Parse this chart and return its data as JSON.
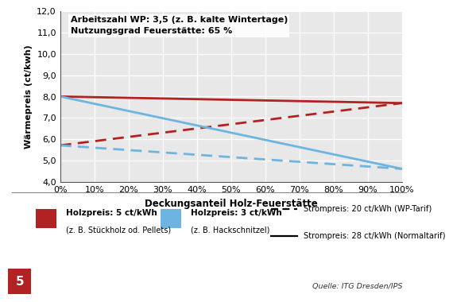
{
  "title_annotation": "Arbeitszahl WP: 3,5 (z. B. kalte Wintertage)\nNutzungsgrad Feuerstätte: 65 %",
  "ylabel": "Wärmepreis (ct/kwh)",
  "xlabel": "Deckungsanteil Holz-Feuerstätte",
  "ylim": [
    4.0,
    12.0
  ],
  "xlim": [
    0.0,
    1.0
  ],
  "yticks": [
    4.0,
    5.0,
    6.0,
    7.0,
    8.0,
    9.0,
    10.0,
    11.0,
    12.0
  ],
  "xticks": [
    0.0,
    0.1,
    0.2,
    0.3,
    0.4,
    0.5,
    0.6,
    0.7,
    0.8,
    0.9,
    1.0
  ],
  "cop": 3.5,
  "efficiency": 0.65,
  "holzpreise": [
    5,
    3
  ],
  "strompreise": [
    28,
    20
  ],
  "red_color": "#B22222",
  "blue_color": "#6EB4E0",
  "legend_holz5_label": "Holzpreis: 5 ct/kWh",
  "legend_holz5_sub": "(z. B. Stückholz od. Pellets)",
  "legend_holz3_label": "Holzpreis: 3 ct/kWh",
  "legend_holz3_sub": "(z. B. Hackschnitzel)",
  "legend_strom20_label": "Strompreis: 20 ct/kWh (WP-Tarif)",
  "legend_strom28_label": "Strompreis: 28 ct/kWh (Normaltarif)",
  "source_text": "Quelle: ITG Dresden/IPS",
  "background_color": "#FFFFFF",
  "grid_color": "#FFFFFF",
  "panel_bg": "#E8E8E8",
  "badge_label": "5",
  "badge_color": "#B22222"
}
